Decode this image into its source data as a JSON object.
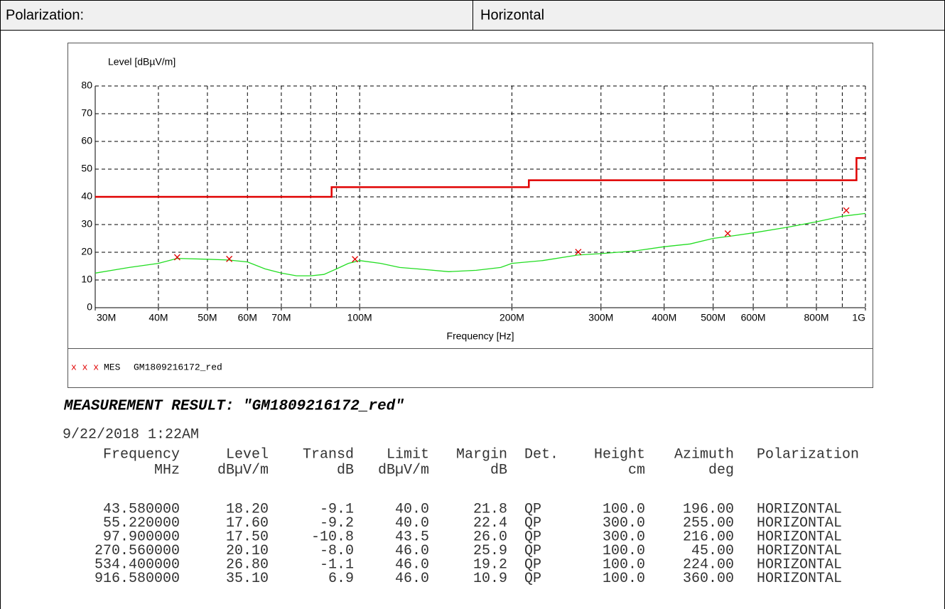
{
  "header": {
    "label": "Polarization:",
    "value": "Horizontal"
  },
  "chart_data": {
    "type": "line",
    "ylabel": "Level [dBµV/m]",
    "xlabel": "Frequency [Hz]",
    "xscale": "log",
    "grid": true,
    "xlim": [
      30000000,
      1000000000
    ],
    "ylim": [
      0,
      80
    ],
    "yticks": [
      0,
      10,
      20,
      30,
      40,
      50,
      60,
      70,
      80
    ],
    "xticks": [
      {
        "value": 30000000,
        "label": "30M"
      },
      {
        "value": 40000000,
        "label": "40M"
      },
      {
        "value": 50000000,
        "label": "50M"
      },
      {
        "value": 60000000,
        "label": "60M"
      },
      {
        "value": 70000000,
        "label": "70M"
      },
      {
        "value": 100000000,
        "label": "100M"
      },
      {
        "value": 200000000,
        "label": "200M"
      },
      {
        "value": 300000000,
        "label": "300M"
      },
      {
        "value": 400000000,
        "label": "400M"
      },
      {
        "value": 500000000,
        "label": "500M"
      },
      {
        "value": 600000000,
        "label": "600M"
      },
      {
        "value": 800000000,
        "label": "800M"
      },
      {
        "value": 1000000000,
        "label": "1G"
      }
    ],
    "xgrid": [
      40000000,
      50000000,
      60000000,
      70000000,
      80000000,
      90000000,
      100000000,
      200000000,
      300000000,
      400000000,
      500000000,
      600000000,
      700000000,
      800000000,
      900000000
    ],
    "limit": {
      "color": "#e00000",
      "x": [
        30000000,
        88000000,
        88000000,
        216000000,
        216000000,
        960000000,
        960000000,
        1000000000
      ],
      "values": [
        40,
        40,
        43.5,
        43.5,
        46,
        46,
        54,
        54
      ]
    },
    "trace": {
      "color": "#22dd22",
      "x": [
        30000000,
        35000000,
        40000000,
        43580000,
        50000000,
        55000000,
        60000000,
        65000000,
        70000000,
        75000000,
        80000000,
        85000000,
        90000000,
        95000000,
        100000000,
        110000000,
        120000000,
        130000000,
        150000000,
        170000000,
        190000000,
        200000000,
        230000000,
        270000000,
        300000000,
        350000000,
        400000000,
        450000000,
        500000000,
        550000000,
        600000000,
        700000000,
        800000000,
        900000000,
        1000000000
      ],
      "values": [
        12.5,
        14.5,
        16,
        17.8,
        17.5,
        17.2,
        16.5,
        14,
        12.5,
        11.5,
        11.5,
        12,
        14,
        16,
        17,
        16,
        14.5,
        14,
        13,
        13.5,
        14.5,
        16,
        17,
        19,
        19.5,
        20.5,
        22,
        23,
        25,
        26,
        27,
        29,
        31,
        33,
        34
      ]
    },
    "markers": {
      "color": "#e00000",
      "x": [
        43580000,
        55220000,
        97900000,
        270560000,
        534400000,
        916580000
      ],
      "values": [
        18.2,
        17.6,
        17.5,
        20.1,
        26.8,
        35.1
      ]
    },
    "legend": {
      "symbol": "x x x",
      "label": "MES",
      "name": "GM1809216172_red"
    }
  },
  "result": {
    "title": "MEASUREMENT RESULT:  \"GM1809216172_red\"",
    "timestamp": "9/22/2018   1:22AM"
  },
  "table": {
    "columns": [
      "Frequency",
      "Level",
      "Transd",
      "Limit",
      "Margin",
      "Det.",
      "Height",
      "Azimuth",
      "Polarization"
    ],
    "units": [
      "MHz",
      "dBµV/m",
      "dB",
      "dBµV/m",
      "dB",
      null,
      "cm",
      "deg",
      null
    ],
    "rows": [
      [
        "43.580000",
        "18.20",
        "-9.1",
        "40.0",
        "21.8",
        "QP",
        "100.0",
        "196.00",
        "HORIZONTAL"
      ],
      [
        "55.220000",
        "17.60",
        "-9.2",
        "40.0",
        "22.4",
        "QP",
        "300.0",
        "255.00",
        "HORIZONTAL"
      ],
      [
        "97.900000",
        "17.50",
        "-10.8",
        "43.5",
        "26.0",
        "QP",
        "300.0",
        "216.00",
        "HORIZONTAL"
      ],
      [
        "270.560000",
        "20.10",
        "-8.0",
        "46.0",
        "25.9",
        "QP",
        "100.0",
        "45.00",
        "HORIZONTAL"
      ],
      [
        "534.400000",
        "26.80",
        "-1.1",
        "46.0",
        "19.2",
        "QP",
        "100.0",
        "224.00",
        "HORIZONTAL"
      ],
      [
        "916.580000",
        "35.10",
        "6.9",
        "46.0",
        "10.9",
        "QP",
        "100.0",
        "360.00",
        "HORIZONTAL"
      ]
    ]
  }
}
